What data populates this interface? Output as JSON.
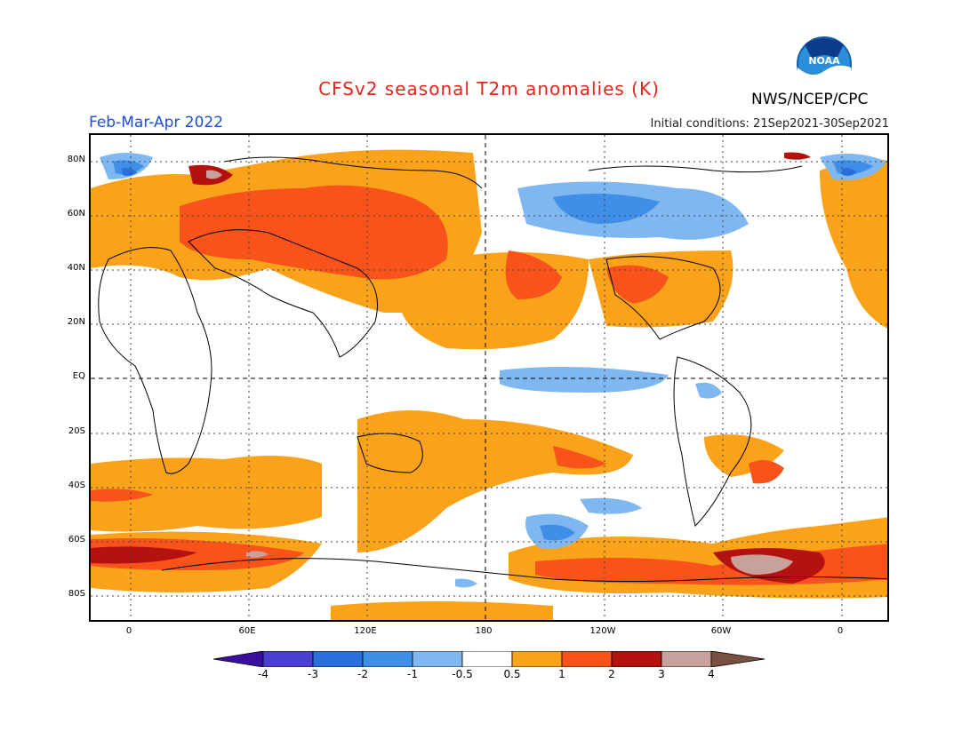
{
  "header": {
    "title": "CFSv2 seasonal T2m anomalies (K)",
    "season": "Feb-Mar-Apr 2022",
    "initial_conditions": "Initial conditions: 21Sep2021-30Sep2021",
    "agency": "NWS/NCEP/CPC",
    "logo_text": "NOAA"
  },
  "axes": {
    "lat_labels": [
      "80N",
      "60N",
      "40N",
      "20N",
      "EQ",
      "20S",
      "40S",
      "60S",
      "80S"
    ],
    "lon_labels": [
      "0",
      "60E",
      "120E",
      "180",
      "120W",
      "60W",
      "0"
    ]
  },
  "colorbar": {
    "labels": [
      "-4",
      "-3",
      "-2",
      "-1",
      "-0.5",
      "0.5",
      "1",
      "2",
      "3",
      "4"
    ],
    "colors": [
      "#3a0fa0",
      "#4a3fd0",
      "#2a6fdc",
      "#3f8ee8",
      "#7fb7f0",
      "#ffffff",
      "#f9a21a",
      "#f7531a",
      "#b3120e",
      "#c8a19a",
      "#7a5040"
    ]
  }
}
